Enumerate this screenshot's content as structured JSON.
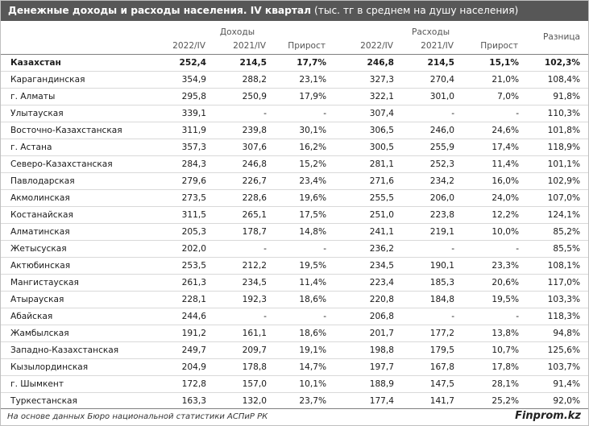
{
  "title": {
    "bold": "Денежные доходы и расходы населения. IV квартал",
    "unit": "(тыс. тг в среднем на душу населения)"
  },
  "headers": {
    "income_group": "Доходы",
    "expense_group": "Расходы",
    "difference": "Разница",
    "y2022": "2022/IV",
    "y2021": "2021/IV",
    "growth": "Прирост"
  },
  "chart_data": {
    "type": "table",
    "title": "Денежные доходы и расходы населения. IV квартал (тыс. тг в среднем на душу населения)",
    "columns": [
      "Доходы 2022/IV",
      "Доходы 2021/IV",
      "Доходы Прирост",
      "Расходы 2022/IV",
      "Расходы 2021/IV",
      "Расходы Прирост",
      "Разница"
    ],
    "rows": [
      {
        "region": "Казахстан",
        "inc2022": "252,4",
        "inc2021": "214,5",
        "incGrowth": "17,7%",
        "exp2022": "246,8",
        "exp2021": "214,5",
        "expGrowth": "15,1%",
        "diff": "102,3%"
      },
      {
        "region": "Карагандинская",
        "inc2022": "354,9",
        "inc2021": "288,2",
        "incGrowth": "23,1%",
        "exp2022": "327,3",
        "exp2021": "270,4",
        "expGrowth": "21,0%",
        "diff": "108,4%"
      },
      {
        "region": "г. Алматы",
        "inc2022": "295,8",
        "inc2021": "250,9",
        "incGrowth": "17,9%",
        "exp2022": "322,1",
        "exp2021": "301,0",
        "expGrowth": "7,0%",
        "diff": "91,8%"
      },
      {
        "region": "Улытауская",
        "inc2022": "339,1",
        "inc2021": "-",
        "incGrowth": "-",
        "exp2022": "307,4",
        "exp2021": "-",
        "expGrowth": "-",
        "diff": "110,3%"
      },
      {
        "region": "Восточно-Казахстанская",
        "inc2022": "311,9",
        "inc2021": "239,8",
        "incGrowth": "30,1%",
        "exp2022": "306,5",
        "exp2021": "246,0",
        "expGrowth": "24,6%",
        "diff": "101,8%"
      },
      {
        "region": "г. Астана",
        "inc2022": "357,3",
        "inc2021": "307,6",
        "incGrowth": "16,2%",
        "exp2022": "300,5",
        "exp2021": "255,9",
        "expGrowth": "17,4%",
        "diff": "118,9%"
      },
      {
        "region": "Северо-Казахстанская",
        "inc2022": "284,3",
        "inc2021": "246,8",
        "incGrowth": "15,2%",
        "exp2022": "281,1",
        "exp2021": "252,3",
        "expGrowth": "11,4%",
        "diff": "101,1%"
      },
      {
        "region": "Павлодарская",
        "inc2022": "279,6",
        "inc2021": "226,7",
        "incGrowth": "23,4%",
        "exp2022": "271,6",
        "exp2021": "234,2",
        "expGrowth": "16,0%",
        "diff": "102,9%"
      },
      {
        "region": "Акмолинская",
        "inc2022": "273,5",
        "inc2021": "228,6",
        "incGrowth": "19,6%",
        "exp2022": "255,5",
        "exp2021": "206,0",
        "expGrowth": "24,0%",
        "diff": "107,0%"
      },
      {
        "region": "Костанайская",
        "inc2022": "311,5",
        "inc2021": "265,1",
        "incGrowth": "17,5%",
        "exp2022": "251,0",
        "exp2021": "223,8",
        "expGrowth": "12,2%",
        "diff": "124,1%"
      },
      {
        "region": "Алматинская",
        "inc2022": "205,3",
        "inc2021": "178,7",
        "incGrowth": "14,8%",
        "exp2022": "241,1",
        "exp2021": "219,1",
        "expGrowth": "10,0%",
        "diff": "85,2%"
      },
      {
        "region": "Жетысуская",
        "inc2022": "202,0",
        "inc2021": "-",
        "incGrowth": "-",
        "exp2022": "236,2",
        "exp2021": "-",
        "expGrowth": "-",
        "diff": "85,5%"
      },
      {
        "region": "Актюбинская",
        "inc2022": "253,5",
        "inc2021": "212,2",
        "incGrowth": "19,5%",
        "exp2022": "234,5",
        "exp2021": "190,1",
        "expGrowth": "23,3%",
        "diff": "108,1%"
      },
      {
        "region": "Мангистауская",
        "inc2022": "261,3",
        "inc2021": "234,5",
        "incGrowth": "11,4%",
        "exp2022": "223,4",
        "exp2021": "185,3",
        "expGrowth": "20,6%",
        "diff": "117,0%"
      },
      {
        "region": "Атырауская",
        "inc2022": "228,1",
        "inc2021": "192,3",
        "incGrowth": "18,6%",
        "exp2022": "220,8",
        "exp2021": "184,8",
        "expGrowth": "19,5%",
        "diff": "103,3%"
      },
      {
        "region": "Абайская",
        "inc2022": "244,6",
        "inc2021": "-",
        "incGrowth": "-",
        "exp2022": "206,8",
        "exp2021": "-",
        "expGrowth": "-",
        "diff": "118,3%"
      },
      {
        "region": "Жамбылская",
        "inc2022": "191,2",
        "inc2021": "161,1",
        "incGrowth": "18,6%",
        "exp2022": "201,7",
        "exp2021": "177,2",
        "expGrowth": "13,8%",
        "diff": "94,8%"
      },
      {
        "region": "Западно-Казахстанская",
        "inc2022": "249,7",
        "inc2021": "209,7",
        "incGrowth": "19,1%",
        "exp2022": "198,8",
        "exp2021": "179,5",
        "expGrowth": "10,7%",
        "diff": "125,6%"
      },
      {
        "region": "Кызылординская",
        "inc2022": "204,9",
        "inc2021": "178,8",
        "incGrowth": "14,7%",
        "exp2022": "197,7",
        "exp2021": "167,8",
        "expGrowth": "17,8%",
        "diff": "103,7%"
      },
      {
        "region": "г. Шымкент",
        "inc2022": "172,8",
        "inc2021": "157,0",
        "incGrowth": "10,1%",
        "exp2022": "188,9",
        "exp2021": "147,5",
        "expGrowth": "28,1%",
        "diff": "91,4%"
      },
      {
        "region": "Туркестанская",
        "inc2022": "163,3",
        "inc2021": "132,0",
        "incGrowth": "23,7%",
        "exp2022": "177,4",
        "exp2021": "141,7",
        "expGrowth": "25,2%",
        "diff": "92,0%"
      }
    ]
  },
  "footer": {
    "source": "На основе данных Бюро национальной статистики АСПиР РК",
    "brand": "Finprom.kz"
  },
  "colors": {
    "title_bar": "#575757",
    "title_text": "#ffffff",
    "row_divider": "#d9d9d9"
  }
}
